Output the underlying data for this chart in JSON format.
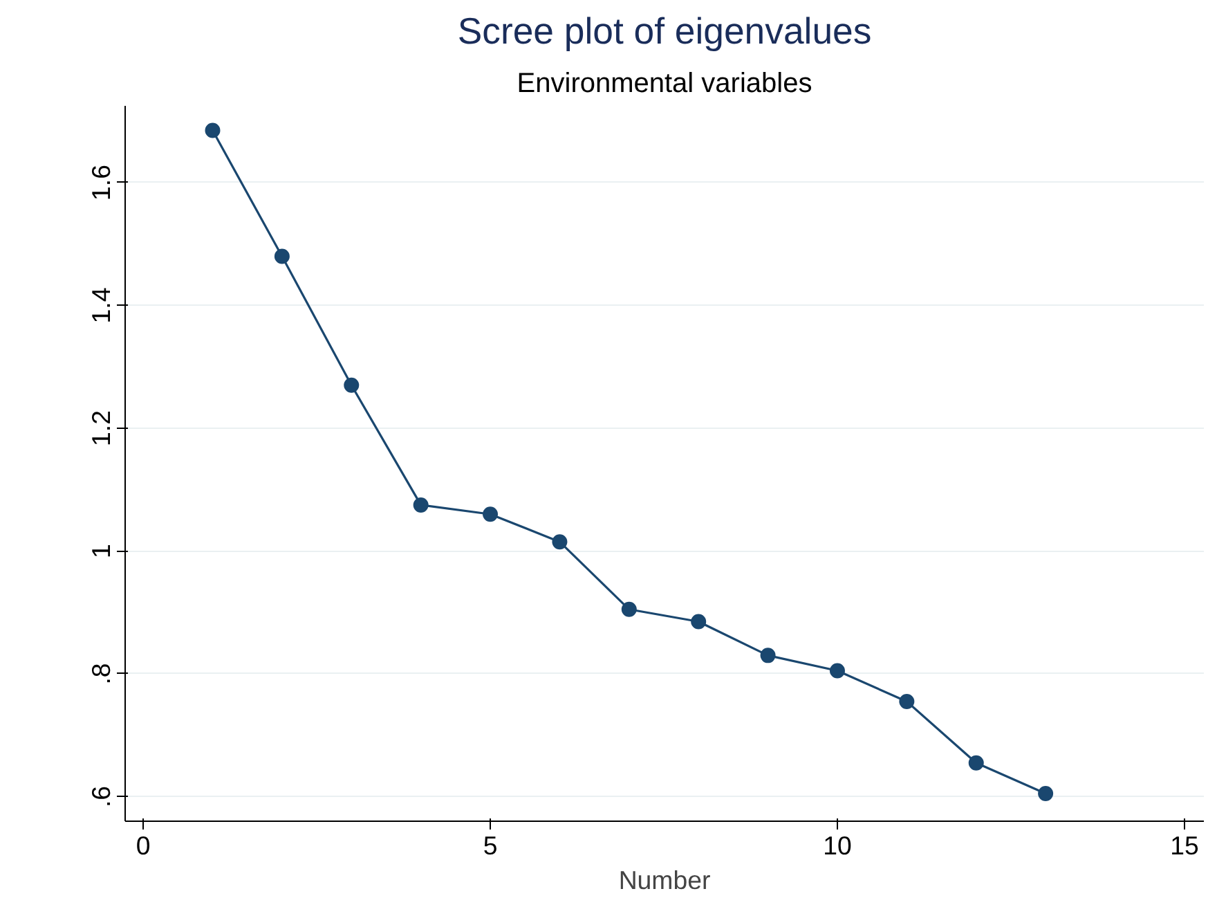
{
  "chart_data": {
    "type": "line",
    "title": "Scree plot of eigenvalues",
    "subtitle": "Environmental variables",
    "xlabel": "Number",
    "x": [
      1,
      2,
      3,
      4,
      5,
      6,
      7,
      8,
      9,
      10,
      11,
      12,
      13
    ],
    "series": [
      {
        "color": "#1a476f",
        "values": [
          1.685,
          1.48,
          1.27,
          1.075,
          1.06,
          1.015,
          0.905,
          0.885,
          0.83,
          0.805,
          0.755,
          0.655,
          0.605
        ]
      }
    ],
    "xlim": [
      -0.26,
      15.28
    ],
    "xticks": [
      0,
      5,
      10,
      15
    ],
    "ylim": [
      0.56,
      1.725
    ],
    "yticks": [
      {
        "value": 0.6,
        "label": ".6"
      },
      {
        "value": 0.8,
        "label": ".8"
      },
      1,
      1.2,
      1.4,
      1.6
    ],
    "grid": "y",
    "marker": "circle",
    "line_style": "solid"
  }
}
